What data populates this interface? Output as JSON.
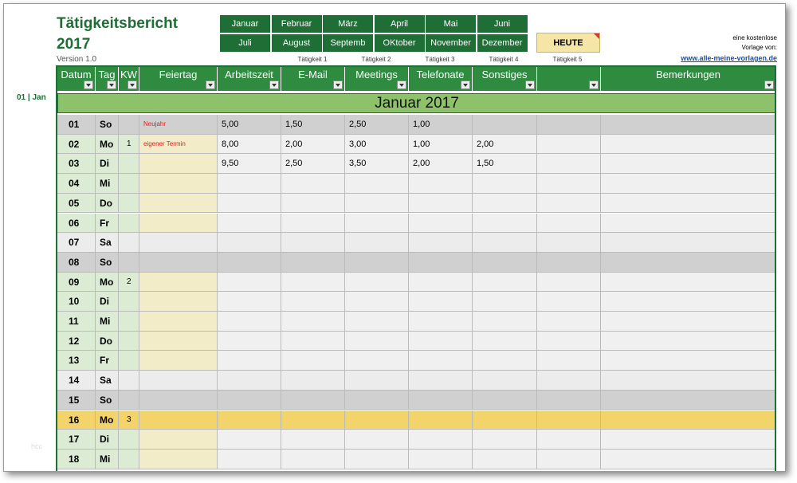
{
  "header": {
    "title": "Tätigkeitsbericht",
    "year": "2017",
    "version": "Version 1.0"
  },
  "months": [
    "Januar",
    "Februar",
    "März",
    "April",
    "Mai",
    "Juni",
    "Juli",
    "August",
    "Septemb",
    "OKtober",
    "November",
    "Dezember"
  ],
  "today_button": "HEUTE",
  "activity_labels": [
    "Tätigkeit 1",
    "Tätigkeit 2",
    "Tätigkeit 3",
    "Tätigkeit 4",
    "Tätigkeit 5"
  ],
  "promo": {
    "lines": [
      "eine kostenlose",
      "Vorlage von:"
    ],
    "link": "www.alle-meine-vorlagen.de"
  },
  "side_label": "01 | Jan",
  "columns": [
    "Datum",
    "Tag",
    "KW",
    "Feiertag",
    "Arbeitszeit",
    "E-Mail",
    "Meetings",
    "Telefonate",
    "Sonstiges",
    "Bemerkungen"
  ],
  "month_title": "Januar 2017",
  "rows": [
    {
      "datum": "01",
      "tag": "So",
      "feiertag": "Neujahr",
      "values": [
        "5,00",
        "1,50",
        "2,50",
        "1,00"
      ]
    },
    {
      "datum": "02",
      "tag": "Mo",
      "kw": "1",
      "feiertag": "eigener Termin",
      "values": [
        "8,00",
        "2,00",
        "3,00",
        "1,00",
        "2,00"
      ]
    },
    {
      "datum": "03",
      "tag": "Di",
      "values": [
        "9,50",
        "2,50",
        "3,50",
        "2,00",
        "1,50"
      ]
    },
    {
      "datum": "04",
      "tag": "Mi"
    },
    {
      "datum": "05",
      "tag": "Do"
    },
    {
      "datum": "06",
      "tag": "Fr"
    },
    {
      "datum": "07",
      "tag": "Sa"
    },
    {
      "datum": "08",
      "tag": "So"
    },
    {
      "datum": "09",
      "tag": "Mo",
      "kw": "2"
    },
    {
      "datum": "10",
      "tag": "Di"
    },
    {
      "datum": "11",
      "tag": "Mi"
    },
    {
      "datum": "12",
      "tag": "Do"
    },
    {
      "datum": "13",
      "tag": "Fr"
    },
    {
      "datum": "14",
      "tag": "Sa"
    },
    {
      "datum": "15",
      "tag": "So"
    },
    {
      "datum": "16",
      "tag": "Mo",
      "kw": "3"
    },
    {
      "datum": "17",
      "tag": "Di"
    },
    {
      "datum": "18",
      "tag": "Mi"
    }
  ]
}
